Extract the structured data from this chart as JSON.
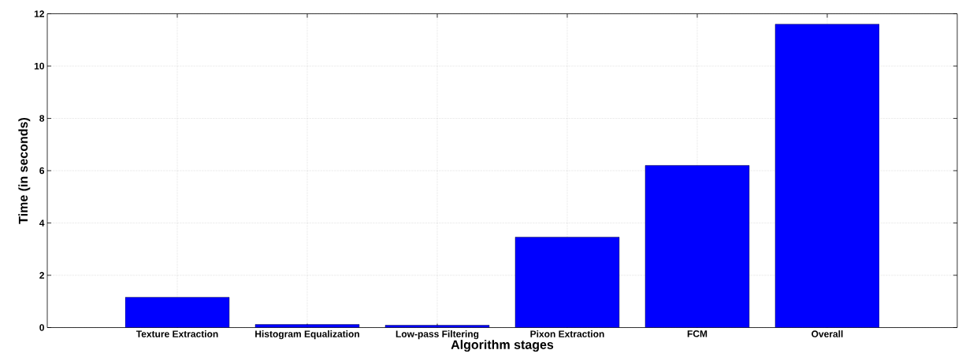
{
  "chart_data": {
    "type": "bar",
    "xlabel": "Algorithm stages",
    "ylabel": "Time (in seconds)",
    "categories": [
      "Texture Extraction",
      "Histogram Equalization",
      "Low-pass Filtering",
      "Pixon Extraction",
      "FCM",
      "Overall"
    ],
    "values": [
      1.16,
      0.12,
      0.09,
      3.46,
      6.2,
      11.6
    ],
    "color": "#0000ff",
    "ylim": [
      0,
      12
    ],
    "yticks": [
      0,
      2,
      4,
      6,
      8,
      10,
      12
    ],
    "grid": true
  }
}
